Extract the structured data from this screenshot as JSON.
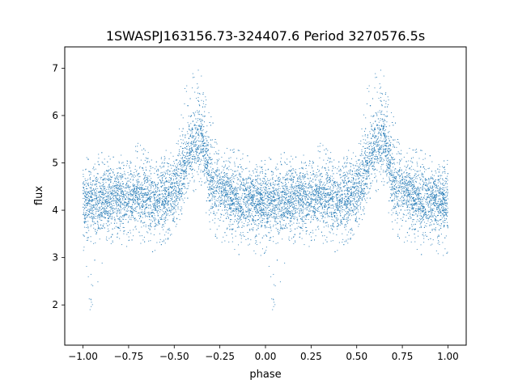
{
  "chart_data": {
    "type": "scatter",
    "title": "1SWASPJ163156.73-324407.6 Period 3270576.5s",
    "xlabel": "phase",
    "ylabel": "flux",
    "xlim": [
      -1.1,
      1.1
    ],
    "ylim": [
      1.15,
      7.45
    ],
    "xticks": [
      -1.0,
      -0.75,
      -0.5,
      -0.25,
      0.0,
      0.25,
      0.5,
      0.75,
      1.0
    ],
    "xtick_labels": [
      "−1.00",
      "−0.75",
      "−0.50",
      "−0.25",
      "0.00",
      "0.25",
      "0.50",
      "0.75",
      "1.00"
    ],
    "yticks": [
      2,
      3,
      4,
      5,
      6,
      7
    ],
    "ytick_labels": [
      "2",
      "3",
      "4",
      "5",
      "6",
      "7"
    ],
    "grid": false,
    "marker_color": "#1f77b4",
    "series": [
      {
        "phase_profile": {
          "x": [
            0.0,
            0.05,
            0.1,
            0.15,
            0.2,
            0.25,
            0.3,
            0.35,
            0.4,
            0.45,
            0.5,
            0.55,
            0.6,
            0.65,
            0.7,
            0.75,
            0.8,
            0.85,
            0.9,
            0.95,
            1.0
          ],
          "median_flux": [
            4.2,
            4.15,
            4.2,
            4.25,
            4.3,
            4.2,
            4.3,
            4.3,
            4.2,
            4.25,
            4.3,
            4.8,
            5.4,
            5.6,
            4.6,
            4.4,
            4.3,
            4.2,
            4.25,
            4.2,
            4.2
          ],
          "flux_min": [
            2.5,
            1.6,
            2.8,
            3.2,
            3.3,
            3.2,
            3.3,
            3.3,
            3.0,
            3.3,
            3.5,
            4.0,
            4.3,
            4.3,
            3.3,
            3.3,
            3.3,
            3.0,
            3.3,
            3.0,
            3.0
          ],
          "flux_max": [
            5.2,
            5.0,
            5.3,
            5.2,
            5.3,
            5.0,
            5.5,
            5.3,
            5.0,
            5.4,
            5.2,
            6.6,
            7.0,
            7.1,
            6.0,
            5.4,
            5.3,
            5.3,
            5.2,
            5.1,
            5.2
          ]
        }
      }
    ]
  }
}
